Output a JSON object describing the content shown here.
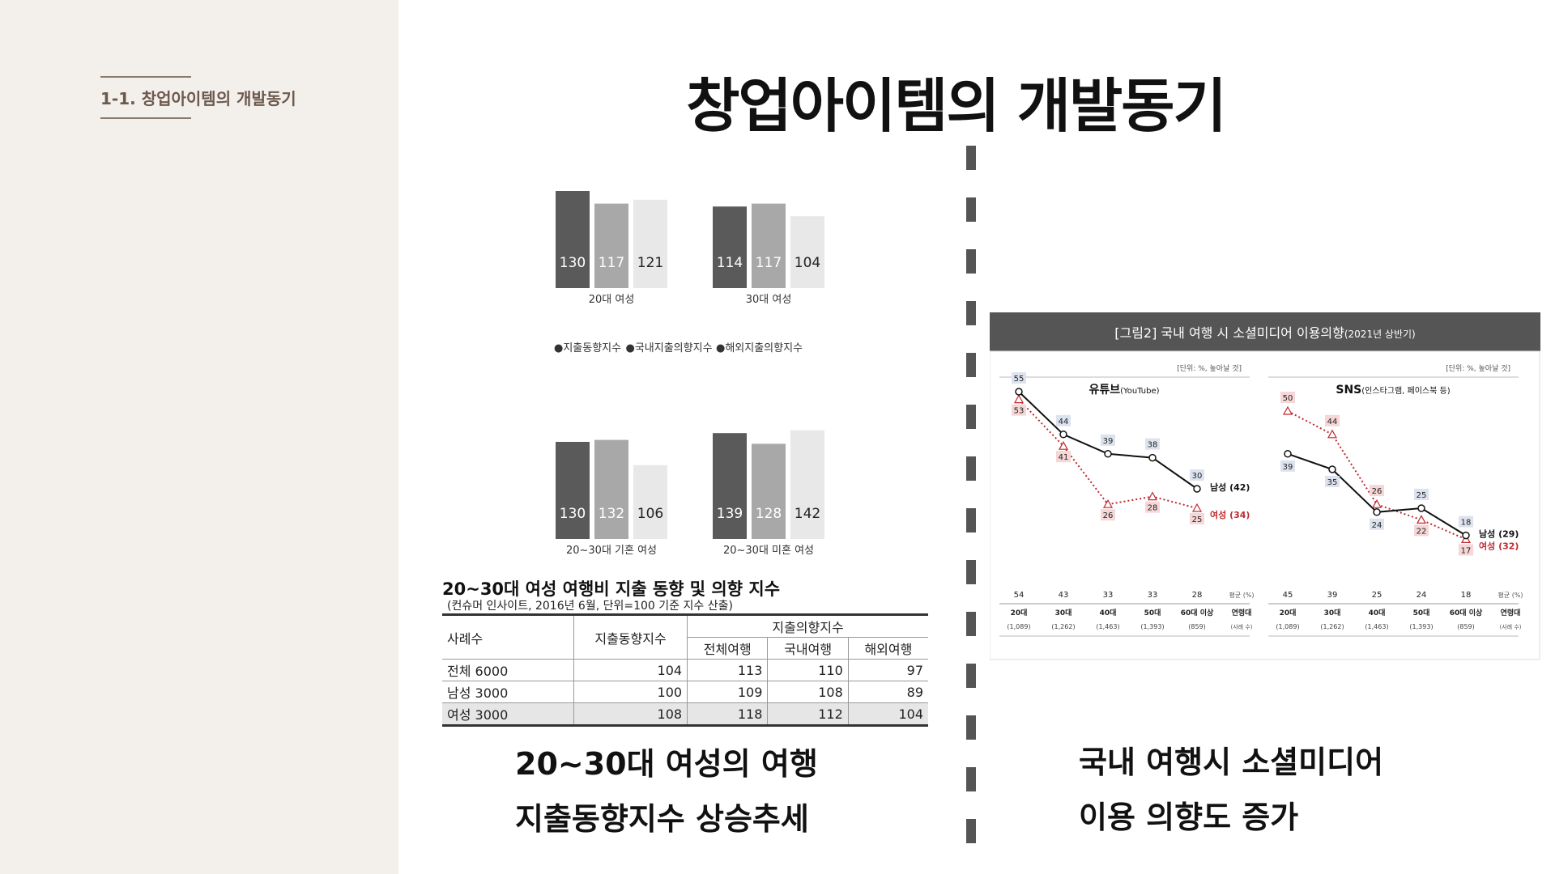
{
  "sidebar": {
    "section_label": "1-1. 창업아이템의 개발동기"
  },
  "page_title": "창업아이템의 개발동기",
  "left_panel": {
    "bar_charts": {
      "legend": [
        "●지출동향지수",
        "●국내지출의향지수",
        "●해외지출의향지수"
      ],
      "series_colors": [
        "#5a5a5a",
        "#a8a8a8",
        "#e8e8e8"
      ],
      "groups": [
        {
          "name": "20대 여성",
          "values": [
            130,
            117,
            121
          ]
        },
        {
          "name": "30대 여성",
          "values": [
            114,
            117,
            104
          ]
        },
        {
          "name": "20~30대 기혼 여성",
          "values": [
            130,
            132,
            106
          ]
        },
        {
          "name": "20~30대 미혼 여성",
          "values": [
            139,
            128,
            142
          ]
        }
      ]
    },
    "table": {
      "title": "20~30대 여성 여행비 지출 동향 및 의향 지수",
      "subtitle": "(컨슈머 인사이트, 2016년 6월, 단위=100 기준 지수 산출)",
      "headers": {
        "col0": "사례수",
        "col1": "지출동향지수",
        "group": "지출의향지수",
        "sub": [
          "전체여행",
          "국내여행",
          "해외여행"
        ]
      },
      "rows": [
        {
          "label": "전체 6000",
          "trend": "104",
          "all": "113",
          "domestic": "110",
          "overseas": "97"
        },
        {
          "label": "남성 3000",
          "trend": "100",
          "all": "109",
          "domestic": "108",
          "overseas": "89"
        },
        {
          "label": "여성 3000",
          "trend": "108",
          "all": "118",
          "domestic": "112",
          "overseas": "104"
        }
      ]
    },
    "caption": [
      "20~30대 여성의 여행",
      "지출동향지수 상승추세"
    ]
  },
  "right_panel": {
    "figure_title": "[그림2] 국내 여행 시 소셜미디어 이용의향",
    "figure_title_suffix": "(2021년 상반기)",
    "unit_note": "[단위: %, 높아날 것]",
    "categories": [
      "20대",
      "30대",
      "40대",
      "50대",
      "60대 이상"
    ],
    "category_last_label": "연령대",
    "sample_sizes": [
      "(1,089)",
      "(1,262)",
      "(1,463)",
      "(1,393)",
      "(859)"
    ],
    "sample_label": "(사례 수)",
    "avg_label": "평균 (%)",
    "colors": {
      "male": "#111111",
      "female": "#c0292f",
      "header_bg": "#555555"
    },
    "charts": [
      {
        "title": "유튜브",
        "title_suffix": "(YouTube)",
        "male": [
          55,
          44,
          39,
          38,
          30
        ],
        "female": [
          53,
          41,
          26,
          28,
          25
        ],
        "male_label": "남성 (42)",
        "female_label": "여성 (34)",
        "averages": [
          "54",
          "43",
          "33",
          "33",
          "28"
        ]
      },
      {
        "title": "SNS",
        "title_suffix": "(인스타그램, 페이스북 등)",
        "male": [
          39,
          35,
          24,
          25,
          18
        ],
        "female": [
          50,
          44,
          26,
          22,
          17
        ],
        "male_label": "남성 (29)",
        "female_label": "여성 (32)",
        "averages": [
          "45",
          "39",
          "25",
          "24",
          "18"
        ]
      }
    ],
    "caption": [
      "국내 여행시 소셜미디어",
      "이용 의향도 증가"
    ]
  }
}
